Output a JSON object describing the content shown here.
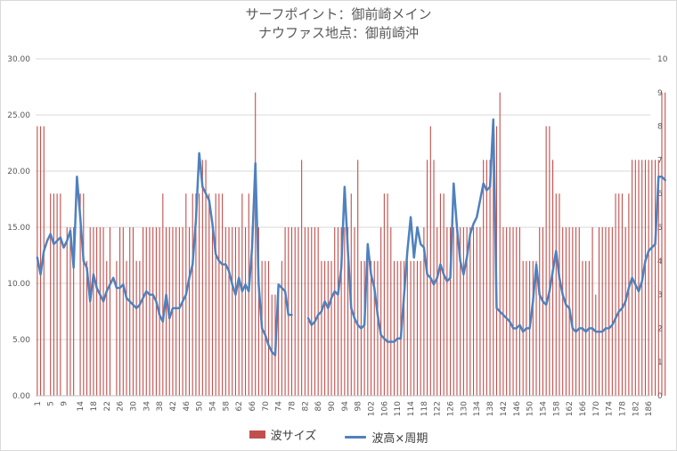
{
  "chart_data": {
    "type": "bar+line",
    "title_lines": [
      "サーフポイント：御前崎メイン",
      "ナウファス地点：御前崎沖"
    ],
    "x": {
      "min": 1,
      "max": 186,
      "tick_labels": [
        "1",
        "5",
        "9",
        "14",
        "18",
        "22",
        "26",
        "30",
        "34",
        "38",
        "42",
        "46",
        "50",
        "54",
        "58",
        "62",
        "66",
        "70",
        "74",
        "78",
        "82",
        "86",
        "90",
        "94",
        "98",
        "102",
        "106",
        "110",
        "114",
        "118",
        "122",
        "126",
        "130",
        "134",
        "138",
        "142",
        "146",
        "150",
        "154",
        "158",
        "162",
        "166",
        "170",
        "174",
        "178",
        "182",
        "186"
      ]
    },
    "y_left": {
      "min": 0,
      "max": 30,
      "tick_labels": [
        "0.00",
        "5.00",
        "10.00",
        "15.00",
        "20.00",
        "25.00",
        "30.00"
      ]
    },
    "y_right": {
      "min": 0,
      "max": 10,
      "tick_labels": [
        "0",
        "1",
        "2",
        "3",
        "4",
        "5",
        "6",
        "7",
        "8",
        "9",
        "10"
      ]
    },
    "grid": true,
    "legend_position": "bottom",
    "series": [
      {
        "name": "波サイズ",
        "kind": "bar",
        "axis": "left",
        "color": "#c0504d",
        "values": [
          24,
          24,
          24,
          0,
          18,
          18,
          18,
          18,
          0,
          15,
          15,
          15,
          0,
          18,
          18,
          12,
          15,
          15,
          15,
          15,
          15,
          12,
          15,
          0,
          12,
          15,
          15,
          12,
          15,
          15,
          12,
          12,
          15,
          15,
          15,
          15,
          15,
          15,
          18,
          15,
          15,
          15,
          15,
          15,
          15,
          18,
          15,
          18,
          18,
          18,
          21,
          21,
          18,
          15,
          18,
          18,
          18,
          15,
          15,
          15,
          15,
          15,
          18,
          15,
          18,
          15,
          27,
          15,
          12,
          12,
          12,
          9,
          9,
          9,
          12,
          15,
          15,
          15,
          15,
          15,
          21,
          15,
          15,
          15,
          15,
          15,
          12,
          12,
          12,
          12,
          15,
          15,
          15,
          15,
          15,
          18,
          15,
          21,
          12,
          12,
          12,
          12,
          12,
          12,
          15,
          18,
          18,
          15,
          12,
          12,
          12,
          12,
          12,
          12,
          12,
          12,
          12,
          15,
          21,
          24,
          21,
          15,
          18,
          18,
          15,
          15,
          15,
          15,
          15,
          15,
          15,
          15,
          15,
          15,
          15,
          21,
          21,
          21,
          24,
          24,
          27,
          15,
          15,
          15,
          15,
          15,
          15,
          12,
          12,
          12,
          12,
          12,
          15,
          15,
          24,
          24,
          21,
          18,
          18,
          15,
          15,
          15,
          15,
          15,
          15,
          12,
          12,
          12,
          15,
          9,
          15,
          15,
          15,
          15,
          15,
          18,
          18,
          18,
          15,
          18,
          21,
          21,
          21,
          21,
          21,
          21,
          21,
          21,
          21,
          27,
          27,
          0
        ]
      },
      {
        "name": "波高×周期",
        "kind": "line",
        "axis": "right",
        "color": "#4f81bd",
        "values": [
          4.1,
          3.6,
          4.3,
          4.6,
          4.8,
          4.5,
          4.6,
          4.7,
          4.4,
          4.6,
          4.9,
          3.8,
          6.5,
          5.3,
          4.0,
          3.8,
          2.8,
          3.6,
          3.2,
          3.0,
          2.8,
          3.1,
          3.3,
          3.5,
          3.2,
          3.2,
          3.3,
          2.9,
          2.8,
          2.7,
          2.6,
          2.7,
          2.9,
          3.1,
          3.0,
          3.0,
          2.8,
          2.4,
          2.2,
          3.0,
          2.3,
          2.6,
          2.6,
          2.6,
          2.8,
          3.0,
          3.5,
          3.9,
          5.2,
          7.2,
          6.2,
          6.0,
          5.8,
          5.1,
          4.2,
          4.0,
          3.9,
          3.9,
          3.7,
          3.3,
          3.0,
          3.5,
          3.1,
          3.3,
          3.1,
          4.4,
          6.9,
          3.3,
          2.0,
          1.8,
          1.5,
          1.3,
          1.2,
          3.3,
          3.2,
          3.1,
          2.4,
          2.4,
          null,
          null,
          null,
          null,
          2.3,
          2.1,
          2.2,
          2.4,
          2.5,
          2.8,
          2.6,
          2.9,
          3.1,
          3.0,
          3.8,
          6.2,
          4.3,
          2.6,
          2.3,
          2.1,
          2.0,
          2.1,
          4.5,
          3.6,
          3.2,
          2.4,
          1.8,
          1.7,
          1.6,
          1.6,
          1.6,
          1.7,
          1.7,
          3.0,
          4.3,
          5.3,
          4.1,
          5.0,
          4.5,
          4.4,
          3.6,
          3.5,
          3.3,
          3.5,
          3.9,
          3.6,
          3.4,
          3.5,
          6.3,
          5.0,
          4.0,
          3.6,
          4.1,
          4.8,
          5.1,
          5.3,
          5.8,
          6.3,
          6.1,
          6.2,
          8.2,
          2.6,
          2.5,
          2.4,
          2.3,
          2.2,
          2.0,
          2.0,
          2.1,
          1.9,
          2.0,
          2.0,
          2.8,
          3.9,
          3.0,
          2.8,
          2.7,
          3.1,
          3.7,
          4.3,
          3.5,
          3.0,
          2.7,
          2.6,
          2.0,
          1.9,
          2.0,
          2.0,
          1.9,
          2.0,
          2.0,
          1.9,
          1.9,
          1.9,
          2.0,
          2.0,
          2.1,
          2.3,
          2.5,
          2.6,
          2.8,
          3.2,
          3.5,
          3.3,
          3.1,
          3.4,
          4.0,
          4.3,
          4.4,
          4.5,
          6.5,
          6.5,
          6.4
        ]
      }
    ]
  }
}
